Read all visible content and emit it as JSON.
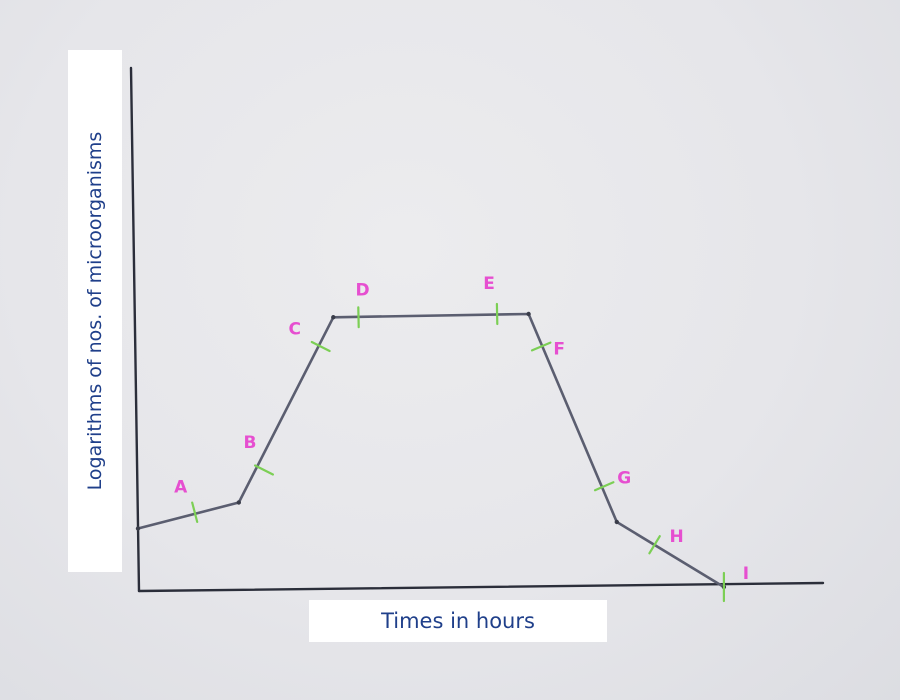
{
  "chart_data": {
    "type": "line",
    "xlabel": "Times in hours",
    "ylabel": "Logarithms of nos. of microorganisms",
    "grid": false,
    "vertices": [
      {
        "x": 0,
        "y": 1.8
      },
      {
        "x": 1.6,
        "y": 2.6
      },
      {
        "x": 3.1,
        "y": 8.3
      },
      {
        "x": 6.2,
        "y": 8.4
      },
      {
        "x": 7.6,
        "y": 2.0
      },
      {
        "x": 9.3,
        "y": 0
      }
    ],
    "points": [
      {
        "label": "A",
        "x": 0.9,
        "y": 2.3
      },
      {
        "label": "B",
        "x": 2.0,
        "y": 3.6
      },
      {
        "label": "C",
        "x": 2.9,
        "y": 7.4
      },
      {
        "label": "D",
        "x": 3.5,
        "y": 8.3
      },
      {
        "label": "E",
        "x": 5.7,
        "y": 8.4
      },
      {
        "label": "F",
        "x": 6.4,
        "y": 7.4
      },
      {
        "label": "G",
        "x": 7.4,
        "y": 3.1
      },
      {
        "label": "H",
        "x": 8.2,
        "y": 1.3
      },
      {
        "label": "I",
        "x": 9.3,
        "y": 0
      }
    ],
    "colors": {
      "axis": "#2b2e3a",
      "curve": "#5b5e70",
      "tick": "#7ccf55",
      "label": "#e64fd0",
      "axis_label": "#1f3f8a"
    }
  }
}
